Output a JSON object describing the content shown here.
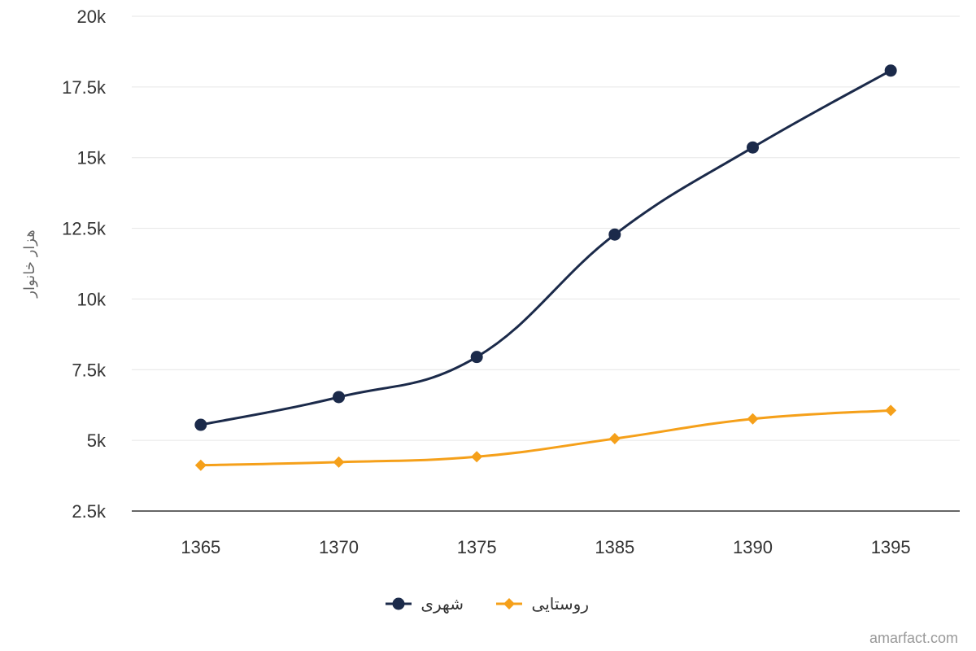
{
  "chart_data": {
    "type": "line",
    "categories": [
      "1365",
      "1370",
      "1375",
      "1385",
      "1390",
      "1395"
    ],
    "series": [
      {
        "name": "شهری",
        "values": [
          5550,
          6530,
          7950,
          12280,
          15360,
          18080
        ],
        "color": "#1b2a4a",
        "marker": "circle"
      },
      {
        "name": "روستایی",
        "values": [
          4120,
          4230,
          4420,
          5060,
          5760,
          6060
        ],
        "color": "#f5a01a",
        "marker": "diamond"
      }
    ],
    "ylabel": "هزار خانوار",
    "xlabel": "",
    "ylim": [
      2500,
      20000
    ],
    "yticks": [
      {
        "value": 2500,
        "label": "2.5k"
      },
      {
        "value": 5000,
        "label": "5k"
      },
      {
        "value": 7500,
        "label": "7.5k"
      },
      {
        "value": 10000,
        "label": "10k"
      },
      {
        "value": 12500,
        "label": "12.5k"
      },
      {
        "value": 15000,
        "label": "15k"
      },
      {
        "value": 17500,
        "label": "17.5k"
      },
      {
        "value": 20000,
        "label": "20k"
      }
    ],
    "grid": true,
    "legend_position": "bottom-center"
  },
  "credit": "amarfact.com"
}
